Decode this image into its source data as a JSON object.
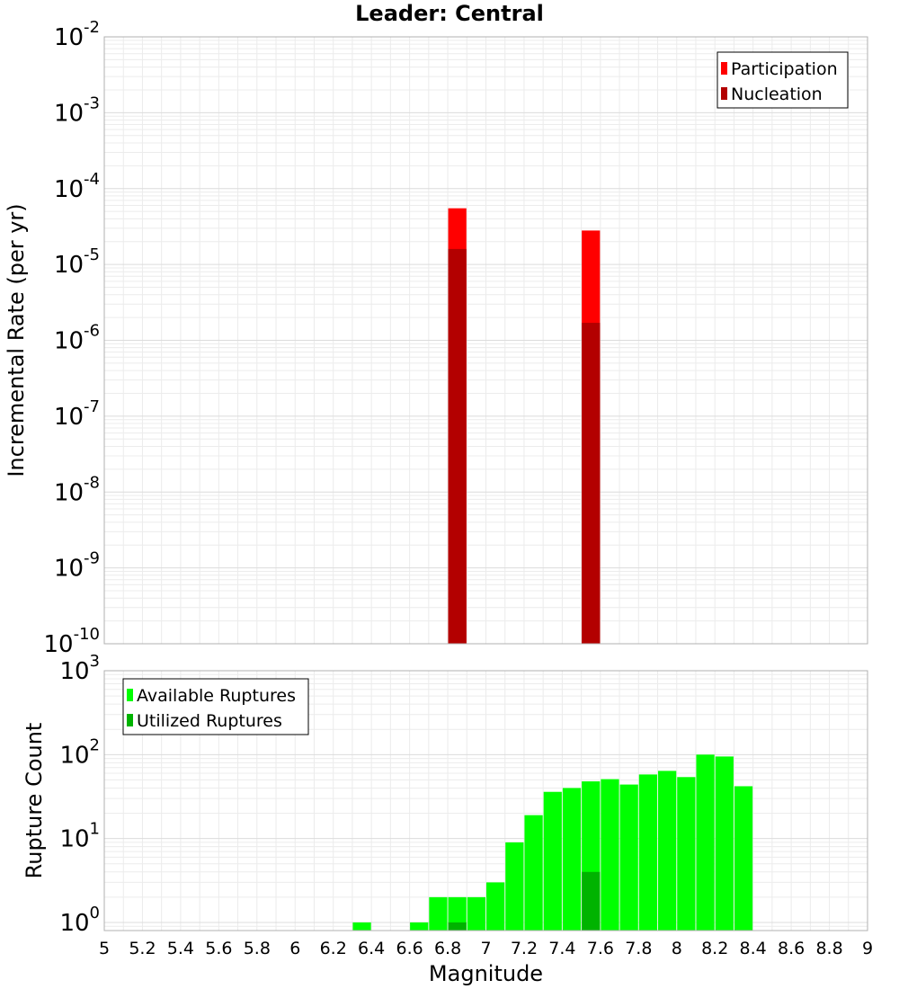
{
  "title": "Leader: Central",
  "chart_data": [
    {
      "type": "bar",
      "panel": "top",
      "ylabel": "Incremental Rate (per yr)",
      "xlabel": "",
      "yscale": "log",
      "ylim": [
        1e-10,
        0.01
      ],
      "xlim": [
        5,
        9
      ],
      "y_ticks": [
        {
          "base": "10",
          "exp": "-10",
          "value": 1e-10
        },
        {
          "base": "10",
          "exp": "-9",
          "value": 1e-09
        },
        {
          "base": "10",
          "exp": "-8",
          "value": 1e-08
        },
        {
          "base": "10",
          "exp": "-7",
          "value": 1e-07
        },
        {
          "base": "10",
          "exp": "-6",
          "value": 1e-06
        },
        {
          "base": "10",
          "exp": "-5",
          "value": 1e-05
        },
        {
          "base": "10",
          "exp": "-4",
          "value": 0.0001
        },
        {
          "base": "10",
          "exp": "-3",
          "value": 0.001
        },
        {
          "base": "10",
          "exp": "-2",
          "value": 0.01
        }
      ],
      "bar_width": 0.1,
      "grid": true,
      "legend_position": "top-right",
      "series": [
        {
          "name": "Participation",
          "color": "#ff0000",
          "x": [
            6.85,
            7.55
          ],
          "values": [
            5.5e-05,
            2.8e-05
          ]
        },
        {
          "name": "Nucleation",
          "color": "#b30000",
          "x": [
            6.85,
            7.55
          ],
          "values": [
            1.6e-05,
            1.7e-06
          ]
        }
      ]
    },
    {
      "type": "bar",
      "panel": "bottom",
      "ylabel": "Rupture Count",
      "xlabel": "Magnitude",
      "yscale": "log",
      "ylim": [
        0.8,
        1000
      ],
      "xlim": [
        5,
        9
      ],
      "x_ticks": [
        "5",
        "5.2",
        "5.4",
        "5.6",
        "5.8",
        "6",
        "6.2",
        "6.4",
        "6.6",
        "6.8",
        "7",
        "7.2",
        "7.4",
        "7.6",
        "7.8",
        "8",
        "8.2",
        "8.4",
        "8.6",
        "8.8",
        "9"
      ],
      "y_ticks": [
        {
          "base": "10",
          "exp": "0",
          "value": 1
        },
        {
          "base": "10",
          "exp": "1",
          "value": 10
        },
        {
          "base": "10",
          "exp": "2",
          "value": 100
        },
        {
          "base": "10",
          "exp": "3",
          "value": 1000
        }
      ],
      "bar_width": 0.1,
      "grid": true,
      "legend_position": "top-left",
      "series": [
        {
          "name": "Available Ruptures",
          "color": "#00ff00",
          "x": [
            6.35,
            6.65,
            6.75,
            6.85,
            6.95,
            7.05,
            7.15,
            7.25,
            7.35,
            7.45,
            7.55,
            7.65,
            7.75,
            7.85,
            7.95,
            8.05,
            8.15,
            8.25,
            8.35
          ],
          "values": [
            1,
            1,
            2,
            2,
            2,
            3,
            9,
            19,
            36,
            40,
            48,
            51,
            44,
            58,
            64,
            54,
            100,
            95,
            42
          ]
        },
        {
          "name": "Utilized Ruptures",
          "color": "#00b300",
          "x": [
            6.85,
            7.55
          ],
          "values": [
            1,
            4
          ]
        }
      ]
    }
  ]
}
